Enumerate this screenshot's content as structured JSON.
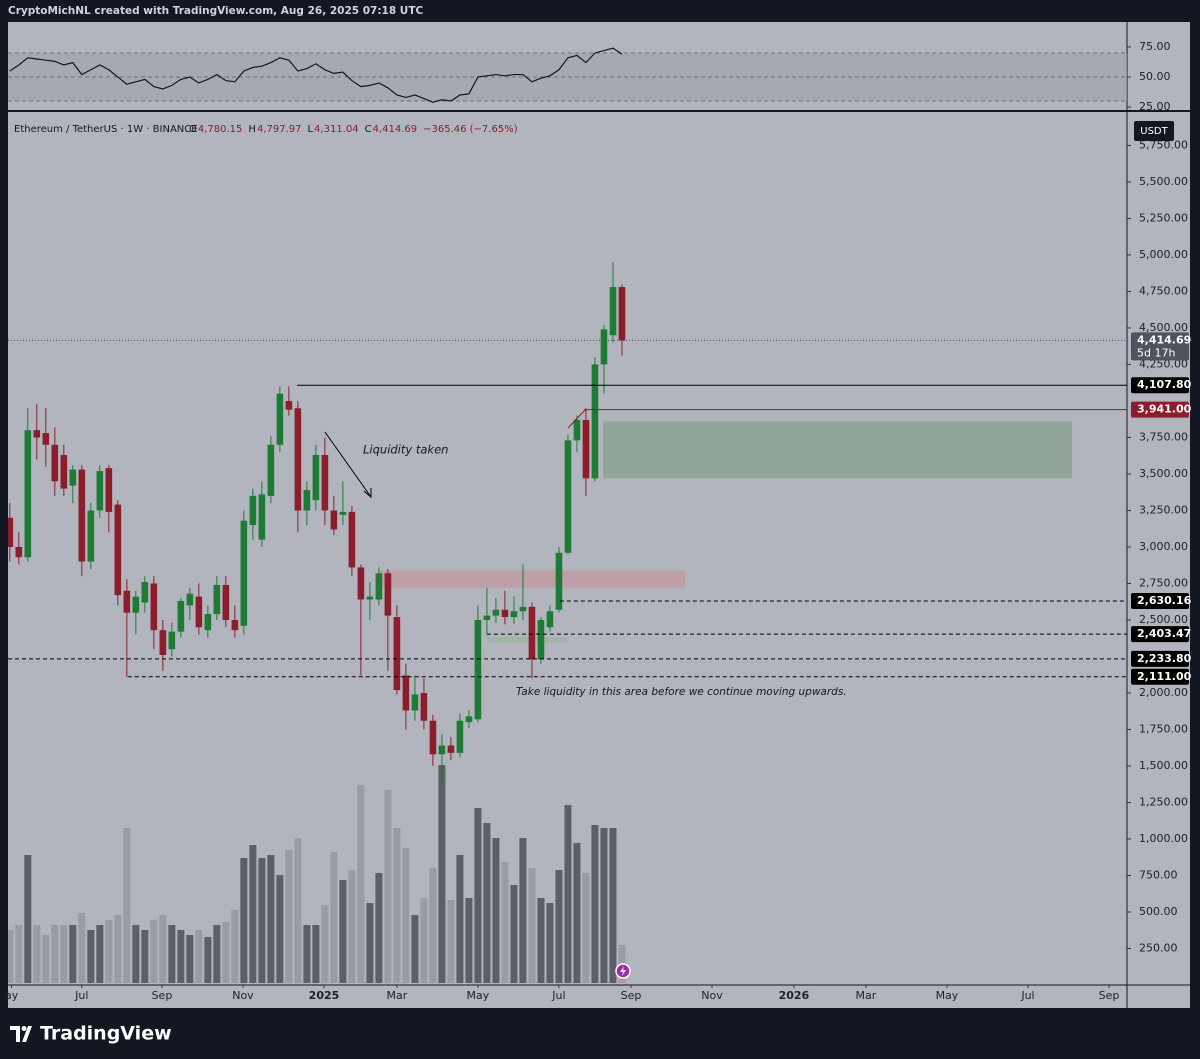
{
  "header": "CryptoMichNL created with TradingView.com, Aug 26, 2025 07:18 UTC",
  "footer": "TradingView",
  "chart_data": {
    "type": "candlestick",
    "title": "Ethereum / TetherUS · 1W · BINANCE",
    "ohlc_legend": [
      {
        "key": "O",
        "value": "4,780.15"
      },
      {
        "key": "H",
        "value": "4,797.97"
      },
      {
        "key": "L",
        "value": "4,311.04"
      },
      {
        "key": "C",
        "value": "4,414.69"
      }
    ],
    "change": "−365.46 (−7.65%)",
    "currency": "USDT",
    "up_color": "#1d7b35",
    "down_color": "#8c1d2c",
    "volume_up_color": "#5d5f66",
    "volume_down_color": "#9a9ca3",
    "open": [
      3200,
      3000,
      2930,
      3800,
      3780,
      3700,
      3630,
      3420,
      3530,
      2900,
      3250,
      3540,
      3290,
      2700,
      2550,
      2620,
      2750,
      2430,
      2300,
      2420,
      2600,
      2660,
      2430,
      2540,
      2740,
      2500,
      2460,
      3150,
      3050,
      3350,
      3700,
      4000,
      3950,
      3250,
      3320,
      3630,
      3250,
      3220,
      3240,
      2860,
      2640,
      2640,
      2820,
      2520,
      2120,
      1880,
      2000,
      1810,
      1580,
      1640,
      1590,
      1800,
      1820,
      2500,
      2530,
      2570,
      2520,
      2560,
      2590,
      2230,
      2450,
      2570,
      2960,
      3730,
      3870,
      3470,
      4250,
      4450,
      4780.15
    ],
    "high": [
      3300,
      3100,
      3950,
      3980,
      3950,
      3820,
      3700,
      3560,
      3560,
      3300,
      3560,
      3560,
      3320,
      2780,
      2700,
      2800,
      2800,
      2500,
      2480,
      2650,
      2720,
      2750,
      2600,
      2800,
      2800,
      2600,
      3250,
      3400,
      3450,
      3760,
      4100,
      4100,
      4000,
      3450,
      3700,
      3750,
      3350,
      3450,
      3280,
      2880,
      2760,
      2860,
      2850,
      2600,
      2200,
      2120,
      2100,
      1850,
      1720,
      1700,
      1860,
      1880,
      2600,
      2720,
      2650,
      2700,
      2660,
      2880,
      2620,
      2520,
      2600,
      3000,
      3770,
      3900,
      3950,
      4300,
      4520,
      4950,
      4797.97
    ],
    "low": [
      2900,
      2880,
      2900,
      3600,
      3550,
      3350,
      3350,
      3300,
      2800,
      2850,
      3200,
      3100,
      2600,
      2110,
      2400,
      2550,
      2300,
      2150,
      2250,
      2380,
      2500,
      2400,
      2380,
      2500,
      2450,
      2380,
      2400,
      3050,
      3000,
      3300,
      3650,
      3900,
      3100,
      3150,
      3250,
      3150,
      3080,
      3150,
      2800,
      2120,
      2500,
      2600,
      2150,
      1990,
      1750,
      1810,
      1750,
      1500,
      1380,
      1540,
      1560,
      1760,
      1800,
      2400,
      2480,
      2470,
      2470,
      2500,
      2100,
      2200,
      2420,
      2550,
      2950,
      3650,
      3350,
      3450,
      4050,
      4400,
      4311.04
    ],
    "close": [
      3000,
      2930,
      3800,
      3750,
      3700,
      3450,
      3400,
      3530,
      2900,
      3250,
      3520,
      3240,
      2670,
      2550,
      2660,
      2760,
      2430,
      2260,
      2420,
      2630,
      2680,
      2450,
      2540,
      2740,
      2500,
      2430,
      3180,
      3350,
      3360,
      3700,
      4050,
      3940,
      3250,
      3390,
      3630,
      3250,
      3120,
      3240,
      2860,
      2640,
      2660,
      2820,
      2530,
      2020,
      1880,
      1990,
      1810,
      1580,
      1640,
      1590,
      1810,
      1840,
      2500,
      2530,
      2570,
      2520,
      2560,
      2590,
      2230,
      2500,
      2560,
      2960,
      3730,
      3870,
      3470,
      4250,
      4490,
      4780,
      4414.69
    ],
    "volume": [
      53,
      58,
      128,
      58,
      48,
      58,
      58,
      58,
      70,
      53,
      58,
      63,
      68,
      155,
      58,
      53,
      63,
      68,
      58,
      53,
      48,
      53,
      46,
      58,
      61,
      73,
      125,
      138,
      125,
      128,
      108,
      133,
      145,
      58,
      58,
      78,
      131,
      103,
      113,
      198,
      80,
      110,
      193,
      155,
      135,
      68,
      85,
      115,
      218,
      83,
      128,
      85,
      175,
      160,
      145,
      121,
      98,
      145,
      115,
      85,
      80,
      113,
      178,
      140,
      110,
      158,
      155,
      155,
      38
    ],
    "rsi": [
      55,
      60,
      66,
      65,
      64,
      63,
      60,
      62,
      52,
      56,
      60,
      56,
      50,
      44,
      46,
      48,
      42,
      40,
      43,
      48,
      50,
      45,
      48,
      52,
      47,
      46,
      55,
      58,
      59,
      62,
      66,
      64,
      55,
      57,
      61,
      56,
      53,
      54,
      47,
      42,
      43,
      45,
      41,
      35,
      33,
      35,
      32,
      29,
      31,
      30,
      35,
      36,
      50,
      51,
      52,
      51,
      52,
      52,
      46,
      49,
      51,
      56,
      66,
      68,
      62,
      70,
      72,
      74,
      69
    ],
    "rsi_color": "#131722",
    "rsi_bands": [
      30,
      50,
      70
    ],
    "rsi_ylim": [
      22.5,
      95.8
    ],
    "rsi_ticks": [
      {
        "value": 75,
        "label": "75.00"
      },
      {
        "value": 50,
        "label": "50.00"
      },
      {
        "value": 25,
        "label": "25.00"
      }
    ],
    "xlim": [
      -0.2,
      124.1
    ],
    "ylim": [
      0,
      5979
    ],
    "xticks": [
      {
        "value": 0.2,
        "label": "ay"
      },
      {
        "value": 8,
        "label": "Jul"
      },
      {
        "value": 16.9,
        "label": "Sep"
      },
      {
        "value": 25.9,
        "label": "Nov"
      },
      {
        "value": 34.9,
        "label": "2025"
      },
      {
        "value": 43,
        "label": "Mar"
      },
      {
        "value": 52,
        "label": "May"
      },
      {
        "value": 61,
        "label": "Jul"
      },
      {
        "value": 69,
        "label": "Sep"
      },
      {
        "value": 78,
        "label": "Nov"
      },
      {
        "value": 87.1,
        "label": "2026"
      },
      {
        "value": 95.1,
        "label": "Mar"
      },
      {
        "value": 104.1,
        "label": "May"
      },
      {
        "value": 113.1,
        "label": "Jul"
      },
      {
        "value": 122.1,
        "label": "Sep"
      }
    ],
    "yticks": [
      {
        "value": 5750,
        "label": "5,750.00"
      },
      {
        "value": 5500,
        "label": "5,500.00"
      },
      {
        "value": 5250,
        "label": "5,250.00"
      },
      {
        "value": 5000,
        "label": "5,000.00"
      },
      {
        "value": 4750,
        "label": "4,750.00"
      },
      {
        "value": 4500,
        "label": "4,500.00"
      },
      {
        "value": 4250,
        "label": "4,250.00"
      },
      {
        "value": 3750,
        "label": "3,750.00"
      },
      {
        "value": 3500,
        "label": "3,500.00"
      },
      {
        "value": 3250,
        "label": "3,250.00"
      },
      {
        "value": 3000,
        "label": "3,000.00"
      },
      {
        "value": 2750,
        "label": "2,750.00"
      },
      {
        "value": 2500,
        "label": "2,500.00"
      },
      {
        "value": 2000,
        "label": "2,000.00"
      },
      {
        "value": 1750,
        "label": "1,750.00"
      },
      {
        "value": 1500,
        "label": "1,500.00"
      },
      {
        "value": 1250,
        "label": "1,250.00"
      },
      {
        "value": 1000,
        "label": "1,000.00"
      },
      {
        "value": 750,
        "label": "750.00"
      },
      {
        "value": 500,
        "label": "500.00"
      },
      {
        "value": 250,
        "label": "250.00"
      }
    ],
    "zones": [
      {
        "from": 65.9,
        "to": 118,
        "top": 3860,
        "bottom": 3470,
        "color": "#8aa393"
      },
      {
        "from": 41,
        "to": 75,
        "top": 2840,
        "bottom": 2720,
        "color": "#c09aa3"
      },
      {
        "from": 53,
        "to": 62,
        "top": 2385,
        "bottom": 2345,
        "color": "#9fb6a5"
      }
    ],
    "levels": [
      {
        "value": 4414.69,
        "label": "4,414.69",
        "sub": "5d 17h",
        "from": -0.2,
        "style": "dotted",
        "color": "#50535e"
      },
      {
        "value": 4107.8,
        "label": "4,107.80",
        "from": 31.9,
        "style": "solid",
        "color": "#000000"
      },
      {
        "value": 3941,
        "label": "3,941.00",
        "from": 63.8,
        "style": "solid",
        "color": "#8c1d2c"
      },
      {
        "value": 2630.16,
        "label": "2,630.16",
        "from": 61.1,
        "style": "dashed",
        "color": "#000000"
      },
      {
        "value": 2403.47,
        "label": "2,403.47",
        "from": 53,
        "style": "dashed",
        "color": "#000000"
      },
      {
        "value": 2233.8,
        "label": "2,233.80",
        "from": -0.2,
        "style": "dashed",
        "color": "#000000"
      },
      {
        "value": 2111,
        "label": "2,111.00",
        "from": 13.1,
        "style": "dashed",
        "color": "#000000"
      }
    ],
    "annotations": [
      "Liquidity taken",
      "Take liquidity in this area before we continue moving upwards."
    ]
  }
}
